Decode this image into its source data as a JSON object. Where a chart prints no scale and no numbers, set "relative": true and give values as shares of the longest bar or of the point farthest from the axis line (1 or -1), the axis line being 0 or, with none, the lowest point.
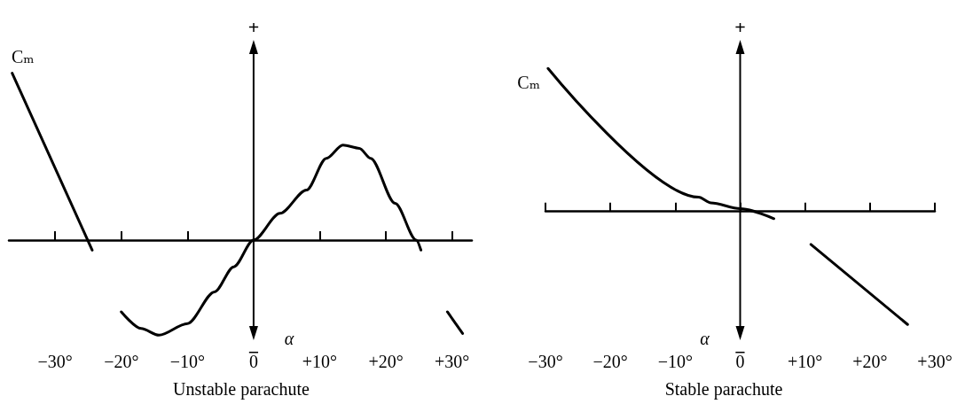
{
  "chart_data": [
    {
      "type": "line",
      "title": "Unstable parachute",
      "xlabel": "α",
      "relative": true,
      "marker": "none",
      "line_style": "solid",
      "annotations": [
        "+",
        "−"
      ],
      "xlim": [
        -37,
        33
      ],
      "xticks": [
        {
          "value": -30,
          "label": "−30°"
        },
        {
          "value": -20,
          "label": "−20°"
        },
        {
          "value": -10,
          "label": "−10°"
        },
        0,
        {
          "value": 10,
          "label": "+10°"
        },
        {
          "value": 20,
          "label": "+20°"
        },
        {
          "value": 30,
          "label": "+30°"
        }
      ],
      "x": [
        -36.5,
        -24.4,
        -22,
        -20,
        -17,
        -14.3,
        -10,
        -5.9,
        -3,
        0,
        4,
        8,
        11,
        13.5,
        16,
        17.7,
        21.4,
        24.6,
        25.3,
        27,
        29.3,
        31.6
      ],
      "series": [
        {
          "name": "Cₘ",
          "color": "#000000",
          "values": [
            1,
            -0.06,
            null,
            -0.43,
            -0.53,
            -0.57,
            -0.5,
            -0.31,
            -0.16,
            0,
            0.16,
            0.3,
            0.49,
            0.57,
            0.55,
            0.49,
            0.22,
            0,
            -0.06,
            null,
            -0.43,
            -0.56
          ]
        }
      ]
    },
    {
      "type": "line",
      "title": "Stable parachute",
      "xlabel": "α",
      "relative": true,
      "marker": "none",
      "line_style": "solid",
      "annotations": [
        "+",
        "−"
      ],
      "xlim": [
        -30,
        30
      ],
      "xticks": [
        {
          "value": -30,
          "label": "−30°"
        },
        {
          "value": -20,
          "label": "−20°"
        },
        {
          "value": -10,
          "label": "−10°"
        },
        0,
        {
          "value": 10,
          "label": "+10°"
        },
        {
          "value": 20,
          "label": "+20°"
        },
        {
          "value": 30,
          "label": "+30°"
        }
      ],
      "x": [
        -29.6,
        -6.4,
        -4.5,
        0,
        5.2,
        8,
        10.9,
        25.8
      ],
      "series": [
        {
          "name": "Cₘ",
          "color": "#000000",
          "values": [
            1,
            0.1,
            0.06,
            0.02,
            -0.05,
            null,
            -0.23,
            -0.79
          ]
        }
      ]
    }
  ]
}
